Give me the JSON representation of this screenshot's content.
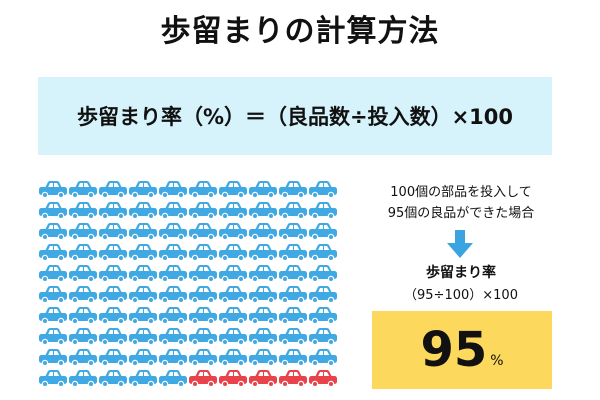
{
  "title": "歩留まりの計算方法",
  "formula": "歩留まり率（%）＝（良品数÷投入数）×100",
  "condition": {
    "line1": "100個の部品を投入して",
    "line2": "95個の良品ができた場合"
  },
  "rate_label": "歩留まり率",
  "rate_calc": "（95÷100）×100",
  "result": {
    "value": "95",
    "unit": "%"
  },
  "illustration": {
    "total_units": 100,
    "good_units": 95,
    "defective_units": 5,
    "good_color": "#40a9e3",
    "defective_color": "#e8434b",
    "good_icon": "blue-car-icon",
    "defective_icon": "red-car-icon"
  },
  "colors": {
    "formula_bg": "#d6f3fb",
    "result_bg": "#fcd95c",
    "arrow": "#3aa3e0"
  }
}
